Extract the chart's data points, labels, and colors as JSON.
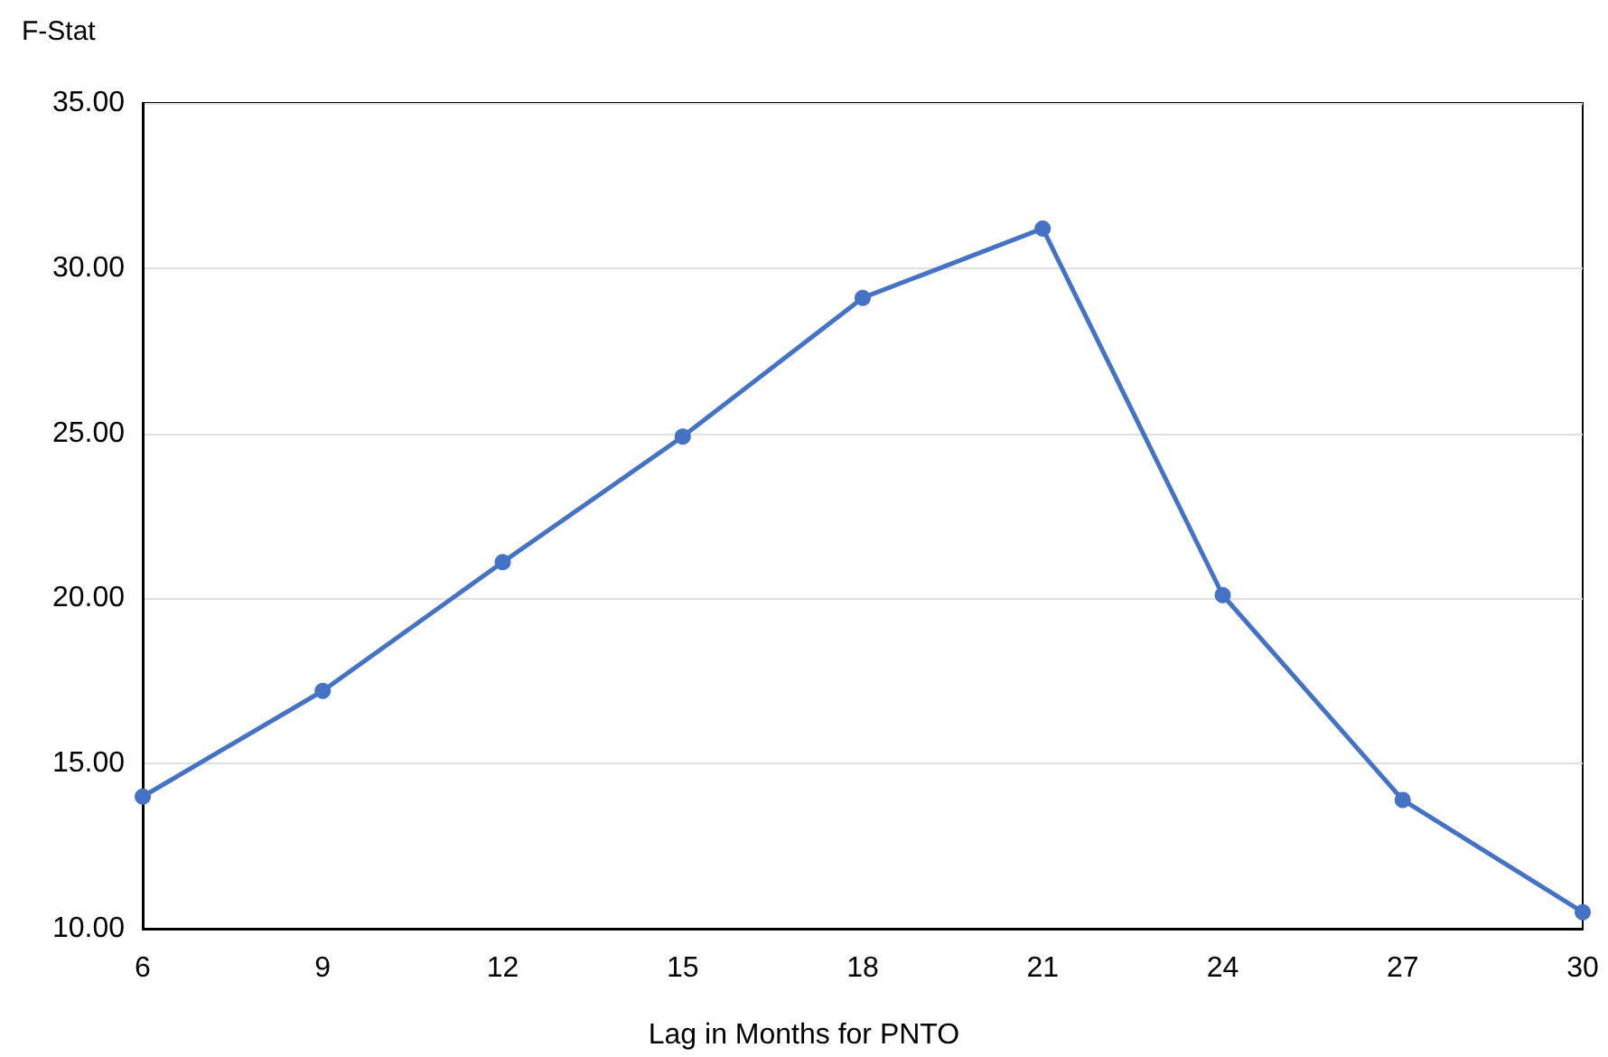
{
  "chart_data": {
    "type": "line",
    "ylabel": "F-Stat",
    "xlabel": "Lag in Months for PNTO",
    "x": [
      6,
      9,
      12,
      15,
      18,
      21,
      24,
      27,
      30
    ],
    "series": [
      {
        "color": "#4472c4",
        "values": [
          14.0,
          17.2,
          21.1,
          24.9,
          29.1,
          31.2,
          20.1,
          13.9,
          10.5
        ]
      }
    ],
    "xlim": [
      6,
      30
    ],
    "xticks": [
      6,
      9,
      12,
      15,
      18,
      21,
      24,
      27,
      30
    ],
    "ylim": [
      10,
      35
    ],
    "yticks": [
      {
        "value": 10,
        "label": "10.00"
      },
      {
        "value": 15,
        "label": "15.00"
      },
      {
        "value": 20,
        "label": "20.00"
      },
      {
        "value": 25,
        "label": "25.00"
      },
      {
        "value": 30,
        "label": "30.00"
      },
      {
        "value": 35,
        "label": "35.00"
      }
    ],
    "grid": "y",
    "marker": "circle",
    "line_style": "solid"
  }
}
